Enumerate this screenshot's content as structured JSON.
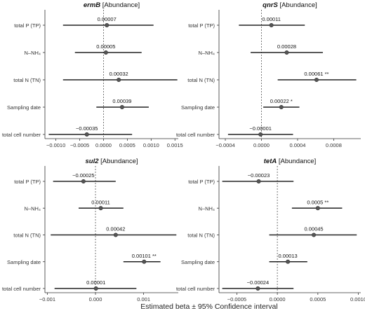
{
  "x_axis_title": "Estimated beta ± 95% Confidence interval",
  "chart_data": [
    {
      "type": "forest",
      "title_gene": "ermB",
      "title_suffix": " [Abundance]",
      "categories": [
        "total P (TP)",
        "N–NH₄",
        "total N (TN)",
        "Sampling date",
        "total cell number"
      ],
      "estimates": [
        7e-05,
        5e-05,
        0.00032,
        0.00039,
        -0.00035
      ],
      "lower": [
        -0.00085,
        -0.0006,
        -0.00085,
        -0.00015,
        -0.00115
      ],
      "upper": [
        0.00105,
        0.0008,
        0.00155,
        0.00095,
        0.0006
      ],
      "labels": [
        "0.00007",
        "0.00005",
        "0.00032",
        "0.00039",
        "−0.00035"
      ],
      "stars": [
        "",
        "",
        "",
        "",
        ""
      ],
      "xlim": [
        -0.00123,
        0.00157
      ],
      "xticks": [
        -0.001,
        -0.0005,
        0,
        0.0005,
        0.001,
        0.0015
      ],
      "xtick_labels": [
        "−0.0010",
        "−0.0005",
        "0.0000",
        "0.0005",
        "0.0010",
        "0.0015"
      ]
    },
    {
      "type": "forest",
      "title_gene": "qnrS",
      "title_suffix": " [Abundance]",
      "categories": [
        "total P (TP)",
        "N–NH₄",
        "total N (TN)",
        "Sampling date",
        "total cell number"
      ],
      "estimates": [
        0.00011,
        0.00028,
        0.00061,
        0.00022,
        -1e-05
      ],
      "lower": [
        -0.00025,
        -0.00012,
        0.00018,
        2e-05,
        -0.00037
      ],
      "upper": [
        0.00048,
        0.00068,
        0.00105,
        0.00042,
        0.00035
      ],
      "labels": [
        "0.00011",
        "0.00028",
        "0.00061",
        "0.00022",
        "−0.00001"
      ],
      "stars": [
        "",
        "",
        "**",
        "*",
        ""
      ],
      "xlim": [
        -0.00047,
        0.0011
      ],
      "xticks": [
        -0.0004,
        0,
        0.0004,
        0.0008
      ],
      "xtick_labels": [
        "−0.0004",
        "0.0000",
        "0.0004",
        "0.0008"
      ]
    },
    {
      "type": "forest",
      "title_gene": "sul2",
      "title_suffix": " [Abundance]",
      "categories": [
        "total P (TP)",
        "N–NH₄",
        "total N (TN)",
        "Sampling date",
        "total cell number"
      ],
      "estimates": [
        -0.00025,
        0.00011,
        0.00042,
        0.00101,
        1e-05
      ],
      "lower": [
        -0.00088,
        -0.00035,
        -0.00093,
        0.00058,
        -0.00085
      ],
      "upper": [
        0.00042,
        0.00058,
        0.00168,
        0.00135,
        0.00085
      ],
      "labels": [
        "−0.00025",
        "0.00011",
        "0.00042",
        "0.00101",
        "0.00001"
      ],
      "stars": [
        "",
        "",
        "",
        "**",
        ""
      ],
      "xlim": [
        -0.00105,
        0.00172
      ],
      "xticks": [
        -0.001,
        0,
        0.001
      ],
      "xtick_labels": [
        "−0.001",
        "0.000",
        "0.001"
      ]
    },
    {
      "type": "forest",
      "title_gene": "tetA",
      "title_suffix": " [Abundance]",
      "categories": [
        "total P (TP)",
        "N–NH₄",
        "total N (TN)",
        "Sampling date",
        "total cell number"
      ],
      "estimates": [
        -0.00023,
        0.0005,
        0.00045,
        0.00013,
        -0.00024
      ],
      "lower": [
        -0.00068,
        0.00018,
        -0.0001,
        -0.0001,
        -0.00068
      ],
      "upper": [
        0.0002,
        0.0008,
        0.00098,
        0.00037,
        0.0002
      ],
      "labels": [
        "−0.00023",
        "0.0005",
        "0.00045",
        "0.00013",
        "−0.00024"
      ],
      "stars": [
        "",
        "**",
        "",
        "",
        ""
      ],
      "xlim": [
        -0.00072,
        0.00103
      ],
      "xticks": [
        -0.0005,
        0,
        0.0005,
        0.001
      ],
      "xtick_labels": [
        "−0.0005",
        "0.0000",
        "0.0005",
        "0.0010"
      ]
    }
  ]
}
